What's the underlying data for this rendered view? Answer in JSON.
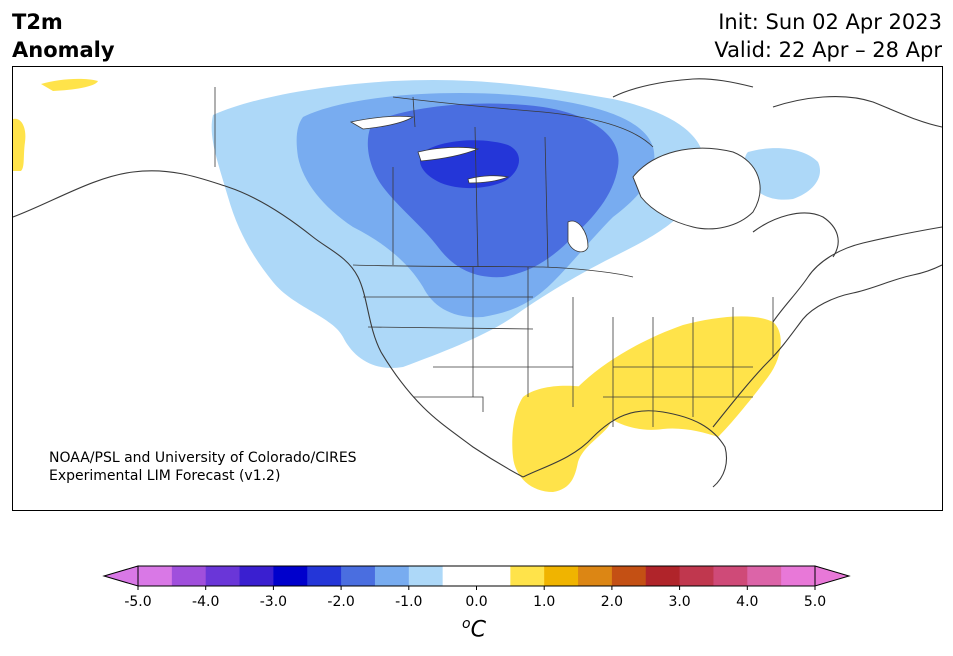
{
  "title": {
    "line1": "T2m",
    "line2": "Anomaly",
    "init": "Init: Sun 02 Apr 2023",
    "valid": "Valid: 22 Apr – 28 Apr"
  },
  "credit": {
    "line1": "NOAA/PSL and University of Colorado/CIRES",
    "line2": "Experimental LIM Forecast (v1.2)"
  },
  "colorbar": {
    "unit_label": "C",
    "unit_superscript": "o",
    "ticks": [
      "-5.0",
      "-4.0",
      "-3.0",
      "-2.0",
      "-1.0",
      "0.0",
      "1.0",
      "2.0",
      "3.0",
      "4.0",
      "5.0"
    ],
    "colors": [
      "#d978e6",
      "#a04fdc",
      "#6a36d8",
      "#3a1fd0",
      "#0000cc",
      "#2436d8",
      "#4a6ee0",
      "#78acf0",
      "#add8f8",
      "#ffffff",
      "#ffffff",
      "#ffe34a",
      "#f0b400",
      "#dc8614",
      "#c45014",
      "#b0242a",
      "#c0374e",
      "#cf4a78",
      "#dc64a8",
      "#e878d8"
    ],
    "under_color": "#d978e6",
    "over_color": "#e878d8"
  },
  "map": {
    "anomaly_colors": {
      "cold_light": "#add8f8",
      "cold_mid": "#78acf0",
      "cold_strong": "#4a6ee0",
      "cold_core": "#2436d8",
      "warm": "#ffe34a",
      "line": "#3a3a3a"
    }
  }
}
